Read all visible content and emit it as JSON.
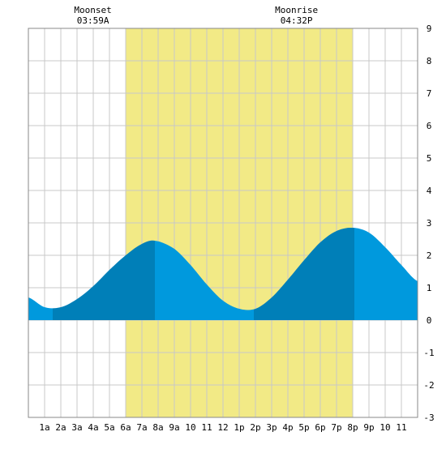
{
  "chart_data": {
    "type": "area",
    "title": "",
    "xlabel": "",
    "ylabel": "",
    "x_tick_labels": [
      "1a",
      "2a",
      "3a",
      "4a",
      "5a",
      "6a",
      "7a",
      "8a",
      "9a",
      "10",
      "11",
      "12",
      "1p",
      "2p",
      "3p",
      "4p",
      "5p",
      "6p",
      "7p",
      "8p",
      "9p",
      "10",
      "11"
    ],
    "ylim": [
      -3,
      9
    ],
    "y_ticks": [
      -3,
      -2,
      -1,
      0,
      1,
      2,
      3,
      4,
      5,
      6,
      7,
      8,
      9
    ],
    "grid": true,
    "daylight_window_hours": [
      6.0,
      20.0
    ],
    "annotations": [
      {
        "label": "Moonset",
        "time": "03:59A",
        "hour": 3.98
      },
      {
        "label": "Moonrise",
        "time": "04:32P",
        "hour": 16.53
      }
    ],
    "series": [
      {
        "x_hours": [
          0,
          1,
          2,
          3,
          4,
          5,
          6,
          7,
          7.8,
          9,
          10,
          11,
          12,
          13,
          14,
          15,
          16,
          17,
          18,
          19,
          20,
          21,
          22,
          23,
          24
        ],
        "values": [
          0.7,
          0.4,
          0.4,
          0.65,
          1.05,
          1.55,
          2.0,
          2.35,
          2.45,
          2.2,
          1.7,
          1.1,
          0.6,
          0.35,
          0.35,
          0.7,
          1.25,
          1.85,
          2.4,
          2.75,
          2.85,
          2.7,
          2.25,
          1.7,
          1.2
        ]
      }
    ],
    "tide_extremes": [
      {
        "kind": "low",
        "hour": 1.5,
        "value": 0.35
      },
      {
        "kind": "high",
        "hour": 7.8,
        "value": 2.45
      },
      {
        "kind": "low",
        "hour": 13.9,
        "value": 0.3
      },
      {
        "kind": "high",
        "hour": 20.1,
        "value": 2.85
      }
    ],
    "colors": {
      "daylight": "#f2ea86",
      "tide_light": "#0099dd",
      "tide_dark": "#007fb8",
      "grid": "#c8c8c8",
      "border": "#888888",
      "background": "#ffffff"
    }
  }
}
